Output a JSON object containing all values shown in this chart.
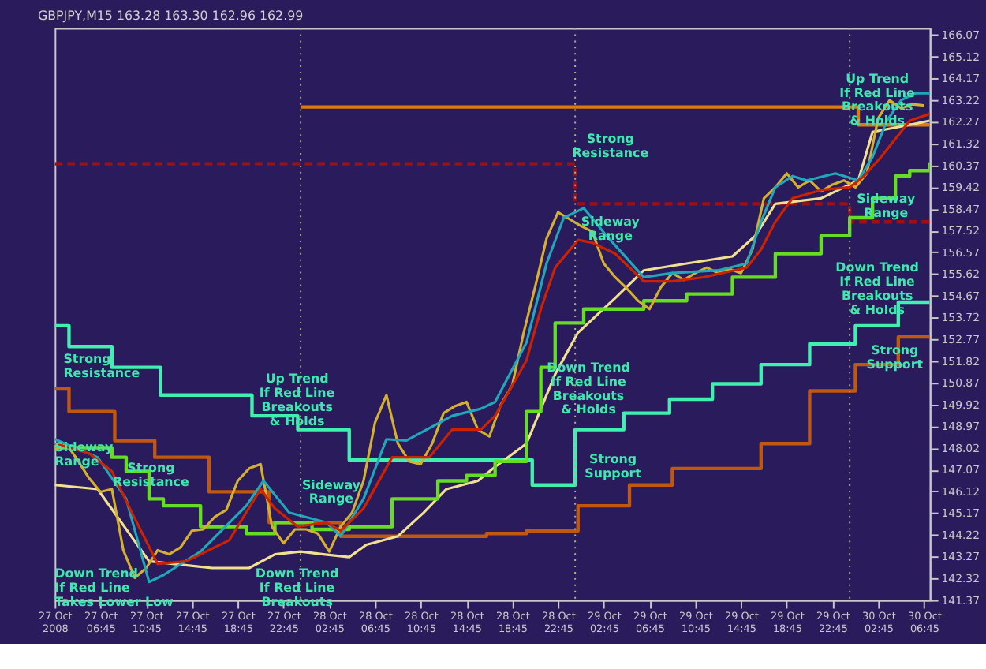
{
  "chart_data": {
    "type": "line",
    "title": "GBPJPY,M15  163.28 163.30 162.96 162.99",
    "xlim": [
      "2008-10-27T02:45",
      "2008-10-30T07:15"
    ],
    "ylim": [
      141.37,
      166.37
    ],
    "xticks": [
      {
        "value": "2008-10-27T02:45",
        "label": "27 Oct 2008"
      },
      {
        "value": "2008-10-27T06:45",
        "label": "27 Oct 06:45"
      },
      {
        "value": "2008-10-27T10:45",
        "label": "27 Oct 10:45"
      },
      {
        "value": "2008-10-27T14:45",
        "label": "27 Oct 14:45"
      },
      {
        "value": "2008-10-27T18:45",
        "label": "27 Oct 18:45"
      },
      {
        "value": "2008-10-27T22:45",
        "label": "27 Oct 22:45"
      },
      {
        "value": "2008-10-28T02:45",
        "label": "28 Oct 02:45"
      },
      {
        "value": "2008-10-28T06:45",
        "label": "28 Oct 06:45"
      },
      {
        "value": "2008-10-28T10:45",
        "label": "28 Oct 10:45"
      },
      {
        "value": "2008-10-28T14:45",
        "label": "28 Oct 14:45"
      },
      {
        "value": "2008-10-28T18:45",
        "label": "28 Oct 18:45"
      },
      {
        "value": "2008-10-28T22:45",
        "label": "28 Oct 22:45"
      },
      {
        "value": "2008-10-29T02:45",
        "label": "29 Oct 02:45"
      },
      {
        "value": "2008-10-29T06:45",
        "label": "29 Oct 06:45"
      },
      {
        "value": "2008-10-29T10:45",
        "label": "29 Oct 10:45"
      },
      {
        "value": "2008-10-29T14:45",
        "label": "29 Oct 14:45"
      },
      {
        "value": "2008-10-29T18:45",
        "label": "29 Oct 18:45"
      },
      {
        "value": "2008-10-29T22:45",
        "label": "29 Oct 22:45"
      },
      {
        "value": "2008-10-30T02:45",
        "label": "30 Oct 02:45"
      },
      {
        "value": "2008-10-30T06:45",
        "label": "30 Oct 06:45"
      }
    ],
    "yticks": [
      141.37,
      142.32,
      143.27,
      144.22,
      145.17,
      146.12,
      147.07,
      148.02,
      148.97,
      149.92,
      150.87,
      151.82,
      152.77,
      153.72,
      154.67,
      155.62,
      156.57,
      157.52,
      158.47,
      159.42,
      160.37,
      161.32,
      162.27,
      163.22,
      164.17,
      165.12,
      166.07
    ],
    "series": [
      {
        "type": "step",
        "color": "#40f0b0",
        "x": [
          "2008-10-27T02:45",
          "2008-10-27T04:00",
          "2008-10-27T07:45",
          "2008-10-27T12:00",
          "2008-10-27T20:00",
          "2008-10-28T00:00",
          "2008-10-28T04:30",
          "2008-10-28T20:30",
          "2008-10-29T00:15",
          "2008-10-29T04:30",
          "2008-10-29T08:30",
          "2008-10-29T12:15",
          "2008-10-29T16:30",
          "2008-10-29T20:45",
          "2008-10-30T00:45",
          "2008-10-30T04:30",
          "2008-10-30T07:15"
        ],
        "values": [
          153.36,
          152.45,
          151.54,
          150.33,
          149.42,
          148.82,
          147.49,
          146.4,
          148.82,
          149.54,
          150.15,
          150.82,
          151.66,
          152.57,
          153.36,
          154.39,
          154.39
        ]
      },
      {
        "type": "step",
        "color": "#c05810",
        "x": [
          "2008-10-27T02:45",
          "2008-10-27T04:00",
          "2008-10-27T08:00",
          "2008-10-27T11:30",
          "2008-10-27T16:15",
          "2008-10-27T21:30",
          "2008-10-28T03:45",
          "2008-10-28T16:30",
          "2008-10-28T20:00",
          "2008-10-29T00:30",
          "2008-10-29T05:00",
          "2008-10-29T08:45",
          "2008-10-29T16:30",
          "2008-10-29T20:45",
          "2008-10-30T00:45",
          "2008-10-30T04:30",
          "2008-10-30T07:15"
        ],
        "values": [
          150.63,
          149.61,
          148.34,
          147.61,
          146.1,
          144.76,
          144.16,
          144.28,
          144.4,
          145.49,
          146.4,
          147.12,
          148.21,
          150.51,
          151.66,
          152.87,
          152.87
        ]
      },
      {
        "type": "step",
        "color": "#e07a10",
        "x": [
          "2008-10-28T00:15",
          "2008-10-30T01:00",
          "2008-10-30T07:15"
        ],
        "values": [
          162.92,
          162.14,
          162.14
        ]
      },
      {
        "type": "step",
        "color": "#a01010",
        "line_style": "dashed",
        "x": [
          "2008-10-27T02:45",
          "2008-10-29T00:15",
          "2008-10-30T00:15",
          "2008-10-30T07:15"
        ],
        "values": [
          160.44,
          158.69,
          157.9,
          157.9
        ]
      },
      {
        "type": "line",
        "color": "#f0e090",
        "x": [
          "2008-10-27T02:45",
          "2008-10-27T06:30",
          "2008-10-27T11:00",
          "2008-10-27T16:30",
          "2008-10-27T19:45",
          "2008-10-27T22:00",
          "2008-10-28T00:15",
          "2008-10-28T02:15",
          "2008-10-28T04:30",
          "2008-10-28T06:00",
          "2008-10-28T08:45",
          "2008-10-28T11:00",
          "2008-10-28T13:00",
          "2008-10-28T15:45",
          "2008-10-28T17:15",
          "2008-10-28T20:00",
          "2008-10-28T22:30",
          "2008-10-29T00:30",
          "2008-10-29T03:45",
          "2008-10-29T06:15",
          "2008-10-29T10:00",
          "2008-10-29T14:00",
          "2008-10-29T16:00",
          "2008-10-29T17:45",
          "2008-10-29T21:45",
          "2008-10-30T01:00",
          "2008-10-30T02:15",
          "2008-10-30T05:30",
          "2008-10-30T07:15"
        ],
        "values": [
          146.4,
          146.22,
          143.07,
          142.77,
          142.77,
          143.37,
          143.49,
          143.37,
          143.25,
          143.79,
          144.16,
          145.19,
          146.22,
          146.58,
          147.19,
          148.21,
          151.24,
          153.06,
          154.57,
          155.78,
          156.08,
          156.39,
          157.29,
          158.69,
          158.93,
          159.71,
          161.83,
          162.14,
          162.32
        ]
      },
      {
        "type": "step",
        "color": "#66dd22",
        "x": [
          "2008-10-27T02:45",
          "2008-10-27T07:45",
          "2008-10-27T09:00",
          "2008-10-27T11:00",
          "2008-10-27T12:15",
          "2008-10-27T15:30",
          "2008-10-27T19:30",
          "2008-10-27T22:00",
          "2008-10-28T01:15",
          "2008-10-28T04:30",
          "2008-10-28T08:15",
          "2008-10-28T12:15",
          "2008-10-28T14:45",
          "2008-10-28T17:15",
          "2008-10-28T20:00",
          "2008-10-28T21:15",
          "2008-10-28T22:30",
          "2008-10-29T01:00",
          "2008-10-29T06:15",
          "2008-10-29T10:00",
          "2008-10-29T14:00",
          "2008-10-29T17:45",
          "2008-10-29T21:45",
          "2008-10-30T00:15",
          "2008-10-30T02:15",
          "2008-10-30T04:15",
          "2008-10-30T05:30",
          "2008-10-30T07:15"
        ],
        "values": [
          148.03,
          147.61,
          147.0,
          145.79,
          145.49,
          144.58,
          144.28,
          144.76,
          144.46,
          144.58,
          145.79,
          146.58,
          146.82,
          147.43,
          149.61,
          151.54,
          153.48,
          154.09,
          154.45,
          154.75,
          155.48,
          156.51,
          157.29,
          158.08,
          158.93,
          159.9,
          160.14,
          160.5
        ]
      },
      {
        "type": "line",
        "color": "#d4b030",
        "x": [
          "2008-10-27T02:45",
          "2008-10-27T03:45",
          "2008-10-27T04:45",
          "2008-10-27T05:45",
          "2008-10-27T06:45",
          "2008-10-27T07:45",
          "2008-10-27T08:45",
          "2008-10-27T09:45",
          "2008-10-27T10:45",
          "2008-10-27T11:45",
          "2008-10-27T12:45",
          "2008-10-27T13:45",
          "2008-10-27T14:45",
          "2008-10-27T15:45",
          "2008-10-27T16:45",
          "2008-10-27T17:45",
          "2008-10-27T18:45",
          "2008-10-27T19:45",
          "2008-10-27T20:45",
          "2008-10-27T21:45",
          "2008-10-27T22:45",
          "2008-10-27T23:45",
          "2008-10-28T00:45",
          "2008-10-28T01:45",
          "2008-10-28T02:45",
          "2008-10-28T03:45",
          "2008-10-28T04:45",
          "2008-10-28T05:45",
          "2008-10-28T06:45",
          "2008-10-28T07:45",
          "2008-10-28T08:45",
          "2008-10-28T09:45",
          "2008-10-28T10:45",
          "2008-10-28T11:45",
          "2008-10-28T12:45",
          "2008-10-28T13:45",
          "2008-10-28T14:45",
          "2008-10-28T15:45",
          "2008-10-28T16:45",
          "2008-10-28T17:45",
          "2008-10-28T18:45",
          "2008-10-28T19:45",
          "2008-10-28T20:45",
          "2008-10-28T21:45",
          "2008-10-28T22:45",
          "2008-10-28T23:45",
          "2008-10-29T00:45",
          "2008-10-29T01:45",
          "2008-10-29T02:45",
          "2008-10-29T03:45",
          "2008-10-29T04:45",
          "2008-10-29T05:45",
          "2008-10-29T06:45",
          "2008-10-29T07:45",
          "2008-10-29T08:45",
          "2008-10-29T09:45",
          "2008-10-29T10:45",
          "2008-10-29T11:45",
          "2008-10-29T12:45",
          "2008-10-29T13:45",
          "2008-10-29T14:45",
          "2008-10-29T15:45",
          "2008-10-29T16:45",
          "2008-10-29T17:45",
          "2008-10-29T18:45",
          "2008-10-29T19:45",
          "2008-10-29T20:45",
          "2008-10-29T21:45",
          "2008-10-29T22:45",
          "2008-10-29T23:45",
          "2008-10-30T00:45",
          "2008-10-30T01:45",
          "2008-10-30T02:45",
          "2008-10-30T03:45",
          "2008-10-30T04:45",
          "2008-10-30T05:45",
          "2008-10-30T06:45"
        ],
        "values": [
          147.91,
          148.21,
          147.49,
          146.7,
          146.1,
          146.22,
          143.55,
          142.34,
          142.77,
          143.55,
          143.37,
          143.67,
          144.4,
          144.46,
          145.01,
          145.31,
          146.58,
          147.12,
          147.31,
          144.58,
          143.85,
          144.46,
          144.46,
          144.28,
          143.49,
          144.58,
          145.19,
          146.58,
          149.12,
          150.33,
          148.21,
          147.43,
          147.31,
          148.21,
          149.54,
          149.85,
          150.03,
          148.82,
          148.52,
          149.91,
          150.76,
          153.06,
          155.05,
          157.17,
          158.32,
          158.02,
          157.72,
          157.47,
          156.08,
          155.48,
          155.0,
          154.45,
          154.09,
          155.05,
          155.66,
          155.36,
          155.66,
          155.9,
          155.66,
          155.84,
          155.66,
          156.69,
          158.93,
          159.41,
          160.02,
          159.41,
          159.71,
          159.23,
          159.53,
          159.71,
          159.41,
          160.02,
          162.44,
          163.22,
          162.86,
          163.04,
          162.99
        ]
      },
      {
        "type": "line",
        "color": "#20a8b8",
        "x": [
          "2008-10-27T02:45",
          "2008-10-27T06:30",
          "2008-10-27T09:00",
          "2008-10-27T11:00",
          "2008-10-27T12:15",
          "2008-10-27T15:30",
          "2008-10-27T19:30",
          "2008-10-27T21:00",
          "2008-10-27T23:15",
          "2008-10-28T02:30",
          "2008-10-28T03:45",
          "2008-10-28T05:45",
          "2008-10-28T07:45",
          "2008-10-28T09:30",
          "2008-10-28T13:30",
          "2008-10-28T16:00",
          "2008-10-28T17:15",
          "2008-10-28T20:00",
          "2008-10-28T21:45",
          "2008-10-28T23:15",
          "2008-10-29T01:00",
          "2008-10-29T03:00",
          "2008-10-29T06:15",
          "2008-10-29T08:45",
          "2008-10-29T12:45",
          "2008-10-29T15:15",
          "2008-10-29T16:30",
          "2008-10-29T17:45",
          "2008-10-29T19:15",
          "2008-10-29T20:30",
          "2008-10-29T23:00",
          "2008-10-30T01:00",
          "2008-10-30T02:15",
          "2008-10-30T03:30",
          "2008-10-30T04:45",
          "2008-10-30T06:00",
          "2008-10-30T07:15"
        ],
        "values": [
          148.4,
          147.61,
          145.79,
          142.16,
          142.46,
          143.49,
          145.49,
          146.58,
          145.19,
          144.76,
          144.16,
          145.79,
          148.4,
          148.34,
          149.42,
          149.73,
          150.03,
          152.63,
          156.08,
          158.08,
          158.5,
          157.29,
          155.48,
          155.66,
          155.78,
          156.08,
          157.9,
          159.41,
          159.9,
          159.71,
          160.02,
          159.71,
          160.74,
          162.32,
          163.22,
          163.52,
          163.52
        ]
      },
      {
        "type": "line",
        "color": "#cc2200",
        "x": [
          "2008-10-27T02:45",
          "2008-10-27T05:45",
          "2008-10-27T07:45",
          "2008-10-27T09:30",
          "2008-10-27T11:45",
          "2008-10-27T14:15",
          "2008-10-27T18:00",
          "2008-10-27T20:45",
          "2008-10-27T22:00",
          "2008-10-28T00:00",
          "2008-10-28T02:30",
          "2008-10-28T03:45",
          "2008-10-28T05:45",
          "2008-10-28T08:15",
          "2008-10-28T11:30",
          "2008-10-28T13:30",
          "2008-10-28T16:00",
          "2008-10-28T17:15",
          "2008-10-28T20:00",
          "2008-10-28T21:15",
          "2008-10-28T22:30",
          "2008-10-29T00:30",
          "2008-10-29T01:45",
          "2008-10-29T03:45",
          "2008-10-29T06:15",
          "2008-10-29T08:45",
          "2008-10-29T11:30",
          "2008-10-29T15:15",
          "2008-10-29T16:30",
          "2008-10-29T17:45",
          "2008-10-29T19:15",
          "2008-10-29T21:45",
          "2008-10-30T00:15",
          "2008-10-30T01:30",
          "2008-10-30T03:00",
          "2008-10-30T04:15",
          "2008-10-30T05:30",
          "2008-10-30T07:15"
        ],
        "values": [
          148.21,
          147.79,
          147.0,
          145.19,
          142.95,
          143.07,
          143.98,
          146.22,
          145.37,
          144.58,
          144.76,
          144.4,
          145.37,
          147.61,
          147.61,
          148.82,
          148.82,
          149.42,
          151.85,
          154.09,
          155.9,
          157.11,
          156.99,
          156.51,
          155.3,
          155.3,
          155.48,
          155.9,
          156.69,
          157.9,
          158.93,
          159.29,
          159.41,
          159.9,
          160.74,
          161.53,
          162.32,
          162.62
        ]
      }
    ],
    "ref_lines": [
      {
        "axis": "x",
        "value": "2008-10-28T00:15",
        "color": "#b0b090",
        "line_style": "dotted"
      },
      {
        "axis": "x",
        "value": "2008-10-29T00:15",
        "color": "#b0b090",
        "line_style": "dotted"
      },
      {
        "axis": "x",
        "value": "2008-10-30T00:15",
        "color": "#b0b090",
        "line_style": "dotted"
      }
    ],
    "annotations": [
      "Strong\nResistance",
      "Sideway\nRange",
      "Strong\nResistance",
      "Down Trend\nIf Red Line\nTakes Lower Low",
      "Up Trend\nIf Red Line\nBreakouts\n& Holds",
      "Sideway\nRange",
      "Down Trend\nIf Red Line\nBreakouts",
      "Strong\nResistance",
      "Sideway\nRange",
      "Down Trend\nIf Red Line\nBreakouts\n& Holds",
      "Strong\nSupport",
      "Up Trend\nIf Red Line\nBreakouts\n& Holds",
      "Sideway\nRange",
      "Down Trend\nIf Red Line\nBreakouts\n& Holds",
      "Strong\nSupport"
    ]
  }
}
